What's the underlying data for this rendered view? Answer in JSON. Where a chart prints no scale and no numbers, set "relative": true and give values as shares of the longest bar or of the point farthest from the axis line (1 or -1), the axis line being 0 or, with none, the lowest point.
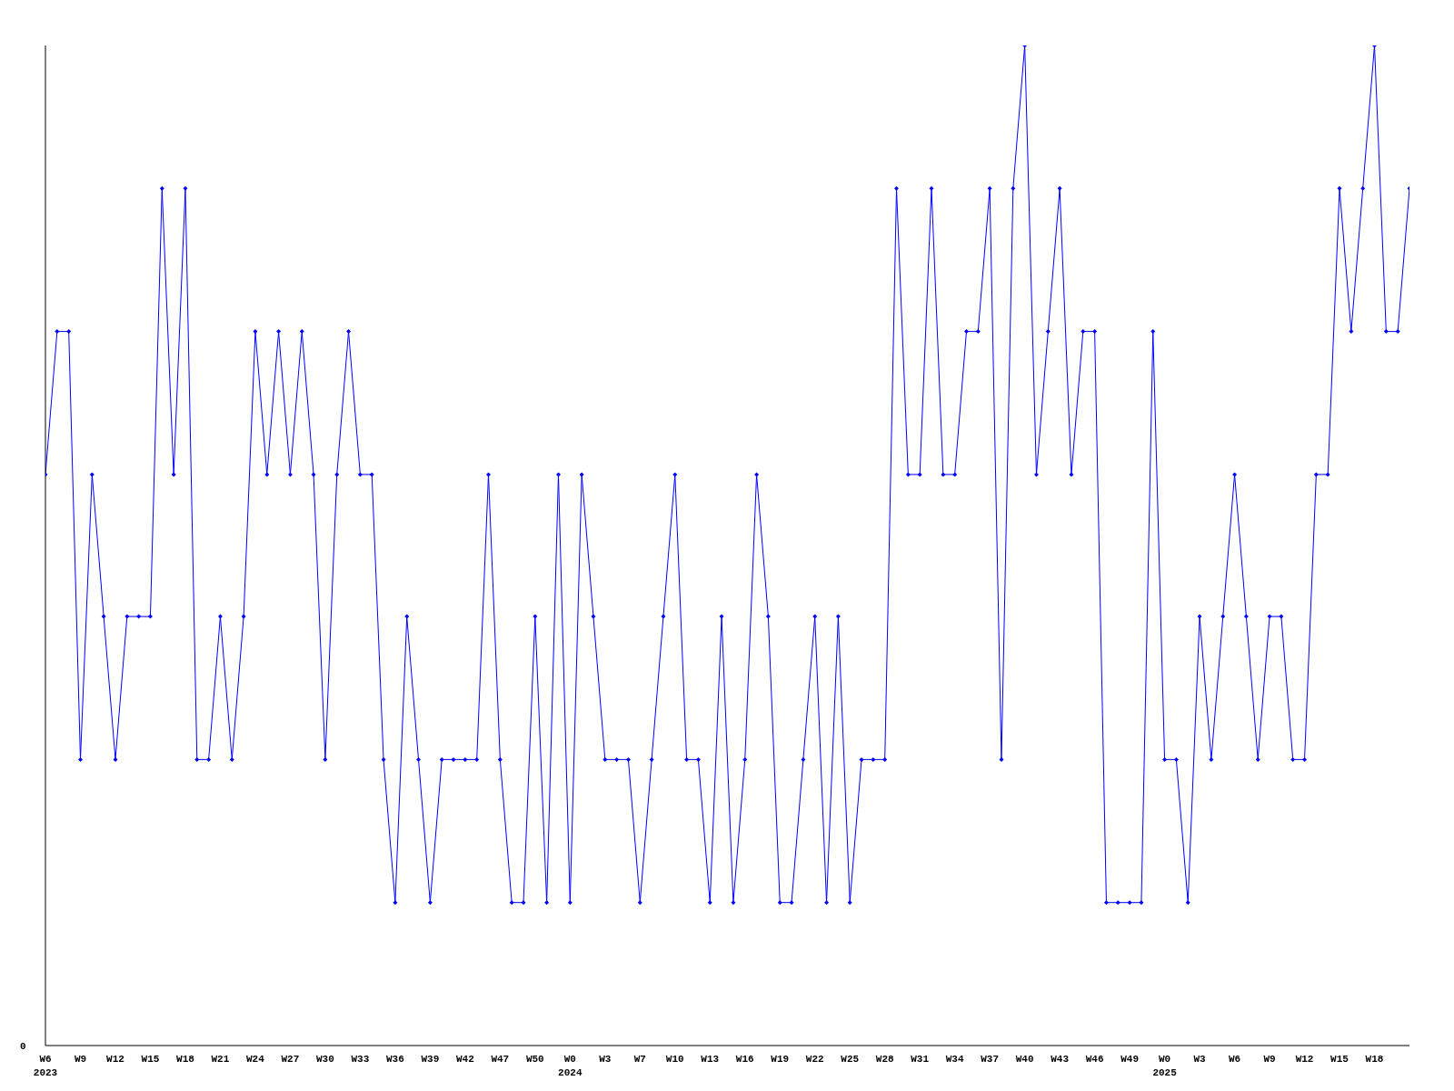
{
  "chart_data": {
    "type": "line",
    "relative": true,
    "annotations": [
      "0"
    ],
    "marker": "diamond",
    "grid": false,
    "legend": false,
    "categories": [
      "W6 2023",
      null,
      null,
      "W9",
      null,
      null,
      "W12",
      null,
      null,
      "W15",
      null,
      null,
      "W18",
      null,
      null,
      "W21",
      null,
      null,
      "W24",
      null,
      null,
      "W27",
      null,
      null,
      "W30",
      null,
      null,
      "W33",
      null,
      null,
      "W36",
      null,
      null,
      "W39",
      null,
      null,
      "W42",
      null,
      null,
      "W47",
      null,
      null,
      "W50",
      null,
      null,
      "W0 2024",
      null,
      null,
      "W3",
      null,
      null,
      "W7",
      null,
      null,
      "W10",
      null,
      null,
      "W13",
      null,
      null,
      "W16",
      null,
      null,
      "W19",
      null,
      null,
      "W22",
      null,
      null,
      "W25",
      null,
      null,
      "W28",
      null,
      null,
      "W31",
      null,
      null,
      "W34",
      null,
      null,
      "W37",
      null,
      null,
      "W40",
      null,
      null,
      "W43",
      null,
      null,
      "W46",
      null,
      null,
      "W49",
      null,
      null,
      "W0 2025",
      null,
      null,
      "W3",
      null,
      null,
      "W6",
      null,
      null,
      "W9",
      null,
      null,
      "W12",
      null,
      null,
      "W15",
      null,
      null,
      "W18",
      null,
      null,
      null
    ],
    "series": [
      {
        "color": "#0000ff",
        "values": [
          0.571,
          0.714,
          0.714,
          0.286,
          0.571,
          0.429,
          0.286,
          0.429,
          0.429,
          0.429,
          0.857,
          0.571,
          0.857,
          0.286,
          0.286,
          0.429,
          0.286,
          0.429,
          0.714,
          0.571,
          0.714,
          0.571,
          0.714,
          0.571,
          0.286,
          0.571,
          0.714,
          0.571,
          0.571,
          0.286,
          0.143,
          0.429,
          0.286,
          0.143,
          0.286,
          0.286,
          0.286,
          0.286,
          0.571,
          0.286,
          0.143,
          0.143,
          0.429,
          0.143,
          0.571,
          0.143,
          0.571,
          0.429,
          0.286,
          0.286,
          0.286,
          0.143,
          0.286,
          0.429,
          0.571,
          0.286,
          0.286,
          0.143,
          0.429,
          0.143,
          0.286,
          0.571,
          0.429,
          0.143,
          0.143,
          0.286,
          0.429,
          0.143,
          0.429,
          0.143,
          0.286,
          0.286,
          0.286,
          0.857,
          0.571,
          0.571,
          0.857,
          0.571,
          0.571,
          0.714,
          0.714,
          0.857,
          0.286,
          0.857,
          1,
          0.571,
          0.714,
          0.857,
          0.571,
          0.714,
          0.714,
          0.143,
          0.143,
          0.143,
          0.143,
          0.714,
          0.286,
          0.286,
          0.143,
          0.429,
          0.286,
          0.429,
          0.571,
          0.429,
          0.286,
          0.429,
          0.429,
          0.286,
          0.286,
          0.571,
          0.571,
          0.857,
          0.714,
          0.857,
          1,
          0.714,
          0.714,
          0.857
        ]
      }
    ]
  }
}
